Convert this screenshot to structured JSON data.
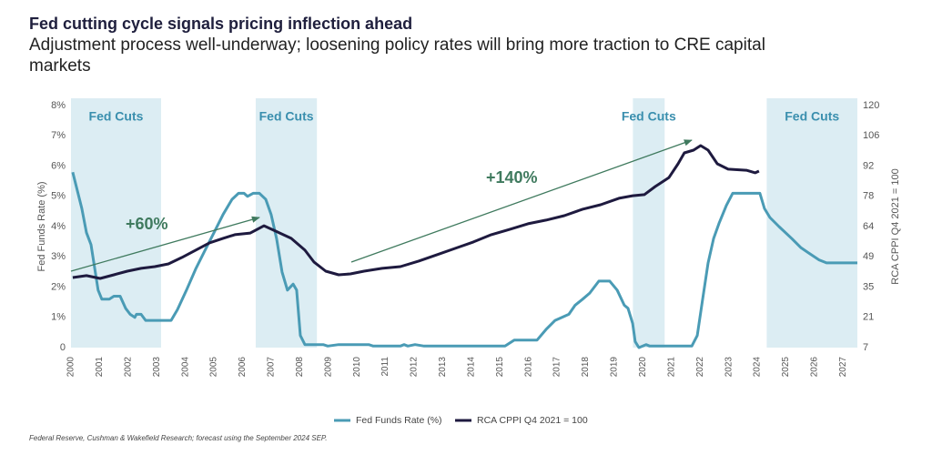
{
  "chart_data": {
    "type": "line",
    "title": "Fed cutting cycle signals pricing inflection ahead",
    "subtitle": "Adjustment process well-underway; loosening policy rates will bring more traction to CRE capital markets",
    "ylabel": "Fed Funds Rate (%)",
    "y2label": "RCA CPPI Q4 2021 = 100",
    "source": "Federal Reserve, Cushman & Wakefield Research; forecast using the September 2024 SEP.",
    "xlim": [
      2000,
      2027.5
    ],
    "xticks": [
      2000,
      2001,
      2002,
      2003,
      2004,
      2005,
      2006,
      2007,
      2008,
      2009,
      2010,
      2011,
      2012,
      2013,
      2014,
      2015,
      2016,
      2017,
      2018,
      2019,
      2020,
      2021,
      2022,
      2023,
      2024,
      2025,
      2026,
      2027
    ],
    "ylim": [
      0,
      8
    ],
    "yticks": [
      0,
      {
        "value": 1,
        "label": "1%"
      },
      {
        "value": 2,
        "label": "2%"
      },
      {
        "value": 3,
        "label": "3%"
      },
      {
        "value": 4,
        "label": "4%"
      },
      {
        "value": 5,
        "label": "5%"
      },
      {
        "value": 6,
        "label": "6%"
      },
      {
        "value": 7,
        "label": "7%"
      },
      {
        "value": 8,
        "label": "8%"
      }
    ],
    "y2lim": [
      7,
      120
    ],
    "y2ticks": [
      7,
      {
        "value": 21.125,
        "label": "21"
      },
      {
        "value": 35.25,
        "label": "35"
      },
      {
        "value": 49.375,
        "label": "49"
      },
      {
        "value": 63.5,
        "label": "64"
      },
      {
        "value": 77.625,
        "label": "78"
      },
      {
        "value": 91.75,
        "label": "92"
      },
      {
        "value": 105.875,
        "label": "106"
      },
      120
    ],
    "shaded_regions": [
      {
        "label": "Fed Cuts",
        "start": 2000,
        "end": 2003.15
      },
      {
        "label": "Fed Cuts",
        "start": 2006.46,
        "end": 2008.6
      },
      {
        "label": "Fed Cuts",
        "start": 2019.65,
        "end": 2020.76
      },
      {
        "label": "Fed Cuts",
        "start": 2024.33,
        "end": 2027.5
      }
    ],
    "annotations": [
      "+60%",
      "+140%"
    ],
    "series": [
      {
        "name": "Fed Funds Rate (%)",
        "color": "#4a9bb5",
        "x": [
          2000.06,
          2000.38,
          2000.54,
          2000.7,
          2000.95,
          2001.08,
          2001.34,
          2001.5,
          2001.72,
          2001.91,
          2002.07,
          2002.23,
          2002.29,
          2002.45,
          2002.61,
          2003.5,
          2003.72,
          2004.04,
          2004.36,
          2004.68,
          2005.0,
          2005.32,
          2005.63,
          2005.86,
          2006.05,
          2006.17,
          2006.37,
          2006.59,
          2006.81,
          2007.0,
          2007.19,
          2007.38,
          2007.57,
          2007.77,
          2007.89,
          2008.02,
          2008.18,
          2008.34,
          2008.82,
          2008.98,
          2009.36,
          2010.41,
          2010.57,
          2011.52,
          2011.65,
          2011.78,
          2012.03,
          2012.35,
          2015.18,
          2015.5,
          2016.3,
          2016.61,
          2016.93,
          2017.41,
          2017.63,
          2017.89,
          2018.14,
          2018.46,
          2018.84,
          2019.1,
          2019.35,
          2019.48,
          2019.64,
          2019.73,
          2019.86,
          2020.11,
          2020.24,
          2021.71,
          2021.9,
          2022.09,
          2022.28,
          2022.47,
          2022.66,
          2022.92,
          2023.14,
          2024.09,
          2024.25,
          2024.44,
          2024.76,
          2025.21,
          2025.53,
          2025.84,
          2026.16,
          2026.42,
          2027.5
        ],
        "values": [
          5.8,
          4.6,
          3.8,
          3.4,
          1.9,
          1.6,
          1.6,
          1.7,
          1.7,
          1.3,
          1.1,
          1.0,
          1.1,
          1.1,
          0.9,
          0.9,
          1.25,
          1.9,
          2.6,
          3.2,
          3.8,
          4.4,
          4.9,
          5.1,
          5.1,
          5.0,
          5.1,
          5.1,
          4.9,
          4.4,
          3.6,
          2.5,
          1.9,
          2.1,
          1.9,
          0.4,
          0.1,
          0.1,
          0.1,
          0.05,
          0.1,
          0.1,
          0.05,
          0.05,
          0.1,
          0.05,
          0.1,
          0.05,
          0.05,
          0.25,
          0.25,
          0.6,
          0.9,
          1.1,
          1.4,
          1.6,
          1.8,
          2.2,
          2.2,
          1.9,
          1.4,
          1.3,
          0.8,
          0.2,
          0,
          0.1,
          0.05,
          0.05,
          0.4,
          1.6,
          2.8,
          3.6,
          4.1,
          4.7,
          5.1,
          5.1,
          4.6,
          4.3,
          4.0,
          3.6,
          3.3,
          3.1,
          2.9,
          2.8,
          2.8
        ]
      },
      {
        "name": "RCA CPPI Q4 2021 = 100",
        "color": "#1e1a3f",
        "axis": "y2",
        "x": [
          2000.06,
          2000.54,
          2001.02,
          2001.5,
          2001.97,
          2002.45,
          2002.93,
          2003.41,
          2003.88,
          2004.36,
          2004.84,
          2005.32,
          2005.73,
          2006.27,
          2006.75,
          2007.22,
          2007.7,
          2008.18,
          2008.5,
          2008.91,
          2009.36,
          2009.77,
          2010.25,
          2010.88,
          2011.52,
          2012.16,
          2012.79,
          2013.43,
          2014.07,
          2014.7,
          2015.34,
          2015.98,
          2016.61,
          2017.25,
          2017.89,
          2018.52,
          2019.16,
          2019.64,
          2020.05,
          2020.43,
          2020.91,
          2021.23,
          2021.45,
          2021.77,
          2022.02,
          2022.28,
          2022.6,
          2022.98,
          2023.62,
          2023.93,
          2024.06
        ],
        "values": [
          39.7,
          40.6,
          39.3,
          41.0,
          42.7,
          44.0,
          44.8,
          46.1,
          49.1,
          52.5,
          55.9,
          58.0,
          59.7,
          60.5,
          63.9,
          61.0,
          58.0,
          52.5,
          46.9,
          42.7,
          41.0,
          41.4,
          42.7,
          44.0,
          44.8,
          47.4,
          50.3,
          53.3,
          56.3,
          59.7,
          62.2,
          64.8,
          66.5,
          68.6,
          71.6,
          73.7,
          76.7,
          77.9,
          78.4,
          82.2,
          86.4,
          92.8,
          97.9,
          99.2,
          101.3,
          99.2,
          92.8,
          90.3,
          89.8,
          88.6,
          89.4
        ]
      }
    ]
  }
}
